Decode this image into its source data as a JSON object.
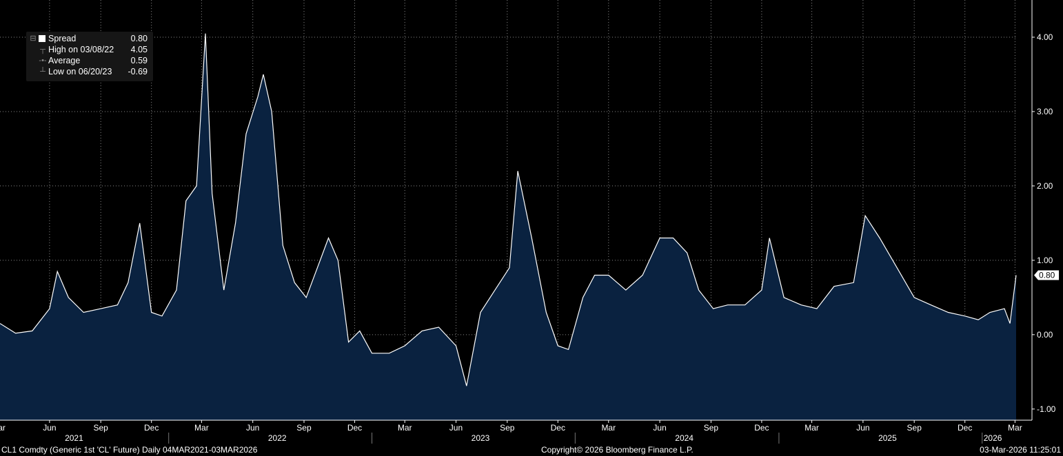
{
  "chart_data": {
    "type": "area",
    "series": [
      {
        "name": "Spread",
        "x": [
          "2021-03-04",
          "2021-04-01",
          "2021-05-01",
          "2021-06-01",
          "2021-06-15",
          "2021-07-05",
          "2021-08-01",
          "2021-09-01",
          "2021-10-01",
          "2021-10-20",
          "2021-11-10",
          "2021-12-01",
          "2021-12-20",
          "2022-01-15",
          "2022-02-01",
          "2022-02-20",
          "2022-03-08",
          "2022-03-20",
          "2022-04-10",
          "2022-05-01",
          "2022-05-20",
          "2022-06-10",
          "2022-06-20",
          "2022-07-05",
          "2022-07-25",
          "2022-08-15",
          "2022-09-05",
          "2022-09-25",
          "2022-10-15",
          "2022-11-01",
          "2022-11-20",
          "2022-12-10",
          "2023-01-01",
          "2023-02-01",
          "2023-03-01",
          "2023-04-01",
          "2023-05-01",
          "2023-06-01",
          "2023-06-20",
          "2023-07-15",
          "2023-08-10",
          "2023-09-05",
          "2023-09-20",
          "2023-10-15",
          "2023-11-10",
          "2023-12-01",
          "2023-12-20",
          "2024-01-15",
          "2024-02-05",
          "2024-03-01",
          "2024-04-01",
          "2024-05-01",
          "2024-06-01",
          "2024-06-25",
          "2024-07-20",
          "2024-08-10",
          "2024-09-05",
          "2024-10-01",
          "2024-11-01",
          "2024-12-01",
          "2024-12-15",
          "2025-01-10",
          "2025-02-10",
          "2025-03-10",
          "2025-04-10",
          "2025-05-15",
          "2025-06-05",
          "2025-07-01",
          "2025-08-01",
          "2025-09-01",
          "2025-10-01",
          "2025-11-01",
          "2025-12-01",
          "2025-12-25",
          "2026-01-15",
          "2026-02-10",
          "2026-02-20",
          "2026-03-03"
        ],
        "values": [
          0.15,
          0.02,
          0.05,
          0.35,
          0.85,
          0.5,
          0.3,
          0.35,
          0.4,
          0.7,
          1.5,
          0.3,
          0.25,
          0.6,
          1.8,
          2.0,
          4.05,
          1.9,
          0.6,
          1.5,
          2.7,
          3.2,
          3.5,
          3.0,
          1.2,
          0.7,
          0.5,
          0.9,
          1.3,
          1.0,
          -0.1,
          0.05,
          -0.25,
          -0.25,
          -0.15,
          0.05,
          0.1,
          -0.15,
          -0.69,
          0.3,
          0.6,
          0.9,
          2.2,
          1.3,
          0.3,
          -0.15,
          -0.2,
          0.5,
          0.8,
          0.8,
          0.6,
          0.8,
          1.3,
          1.3,
          1.1,
          0.6,
          0.35,
          0.4,
          0.4,
          0.6,
          1.3,
          0.5,
          0.4,
          0.35,
          0.65,
          0.7,
          1.6,
          1.3,
          0.9,
          0.5,
          0.4,
          0.3,
          0.25,
          0.2,
          0.3,
          0.35,
          0.15,
          0.8
        ]
      }
    ],
    "xlim": [
      "2021-03-04",
      "2026-03-03"
    ],
    "ylim": [
      -1.15,
      4.5
    ],
    "yticks": [
      -1,
      0,
      1,
      2,
      3,
      4
    ],
    "ytick_labels": [
      "-1.00",
      "0.00",
      "1.00",
      "2.00",
      "3.00",
      "4.00"
    ],
    "last_value_label": "0.80",
    "month_ticks": [
      {
        "date": "2021-03-01",
        "label": "Mar"
      },
      {
        "date": "2021-06-01",
        "label": "Jun"
      },
      {
        "date": "2021-09-01",
        "label": "Sep"
      },
      {
        "date": "2021-12-01",
        "label": "Dec"
      },
      {
        "date": "2022-03-01",
        "label": "Mar"
      },
      {
        "date": "2022-06-01",
        "label": "Jun"
      },
      {
        "date": "2022-09-01",
        "label": "Sep"
      },
      {
        "date": "2022-12-01",
        "label": "Dec"
      },
      {
        "date": "2023-03-01",
        "label": "Mar"
      },
      {
        "date": "2023-06-01",
        "label": "Jun"
      },
      {
        "date": "2023-09-01",
        "label": "Sep"
      },
      {
        "date": "2023-12-01",
        "label": "Dec"
      },
      {
        "date": "2024-03-01",
        "label": "Mar"
      },
      {
        "date": "2024-06-01",
        "label": "Jun"
      },
      {
        "date": "2024-09-01",
        "label": "Sep"
      },
      {
        "date": "2024-12-01",
        "label": "Dec"
      },
      {
        "date": "2025-03-01",
        "label": "Mar"
      },
      {
        "date": "2025-06-01",
        "label": "Jun"
      },
      {
        "date": "2025-09-01",
        "label": "Sep"
      },
      {
        "date": "2025-12-01",
        "label": "Dec"
      },
      {
        "date": "2026-03-01",
        "label": "Mar"
      }
    ],
    "year_labels": [
      {
        "date": "2021-07-15",
        "label": "2021"
      },
      {
        "date": "2022-07-15",
        "label": "2022"
      },
      {
        "date": "2023-07-15",
        "label": "2023"
      },
      {
        "date": "2024-07-15",
        "label": "2024"
      },
      {
        "date": "2025-07-15",
        "label": "2025"
      },
      {
        "date": "2026-01-20",
        "label": "2026"
      }
    ],
    "year_boundaries": [
      "2022-01-01",
      "2023-01-01",
      "2024-01-01",
      "2025-01-01",
      "2026-01-01"
    ],
    "grid": true,
    "colors": {
      "background": "#000000",
      "line": "#ffffff",
      "fill": "#0a2240",
      "grid": "#8a8a8a",
      "axis": "#ffffff"
    }
  },
  "legend": {
    "position": "top-left",
    "rows": [
      {
        "label": "Spread",
        "value": "0.80"
      },
      {
        "label": "High on 03/08/22",
        "value": "4.05"
      },
      {
        "label": "Average",
        "value": "0.59"
      },
      {
        "label": "Low on 06/20/23",
        "value": "-0.69"
      }
    ]
  },
  "footer": {
    "left": "CL1 Comdty (Generic 1st 'CL' Future) Daily 04MAR2021-03MAR2026",
    "center": "Copyright© 2026 Bloomberg Finance L.P.",
    "right": "03-Mar-2026 11:25:01"
  }
}
